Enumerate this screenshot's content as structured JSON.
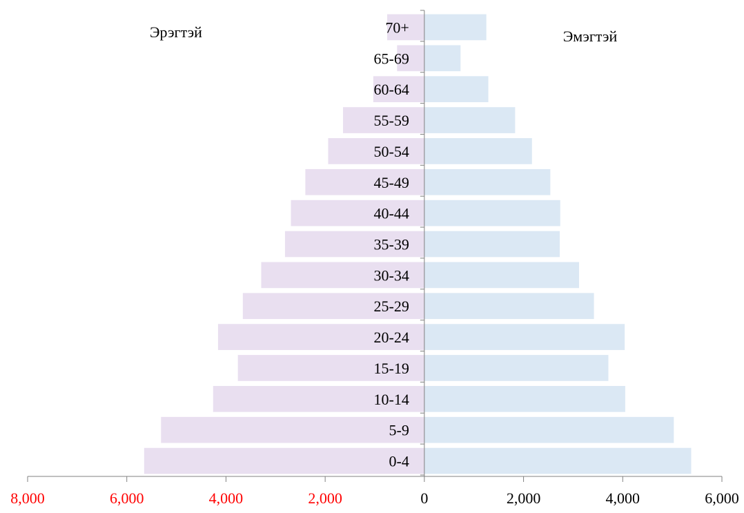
{
  "chart_data": {
    "type": "bar",
    "orientation": "horizontal",
    "subtype": "population-pyramid",
    "categories": [
      "70+",
      "65-69",
      "60-64",
      "55-59",
      "50-54",
      "45-49",
      "40-44",
      "35-39",
      "30-34",
      "25-29",
      "20-24",
      "15-19",
      "10-14",
      "5-9",
      "0-4"
    ],
    "series": [
      {
        "name": "Эрэгтэй",
        "side": "left",
        "color": "#e9dff0",
        "values": [
          750,
          550,
          1030,
          1640,
          1940,
          2400,
          2690,
          2810,
          3290,
          3660,
          4160,
          3760,
          4260,
          5310,
          5650
        ]
      },
      {
        "name": "Эмэгтэй",
        "side": "right",
        "color": "#dbe8f4",
        "values": [
          1250,
          730,
          1290,
          1830,
          2170,
          2540,
          2740,
          2730,
          3120,
          3420,
          4040,
          3710,
          4050,
          5030,
          5380
        ]
      }
    ],
    "xlim": [
      -8000,
      6000
    ],
    "xticks": [
      -8000,
      -6000,
      -4000,
      -2000,
      0,
      2000,
      4000,
      6000
    ],
    "xtick_labels": [
      "8,000",
      "6,000",
      "4,000",
      "2,000",
      "0",
      "2,000",
      "4,000",
      "6,000"
    ],
    "negative_tick_color": "#ff0000",
    "positive_tick_color": "#000000",
    "axis_color": "#808080",
    "grid": false,
    "title": "",
    "xlabel": "",
    "ylabel": ""
  }
}
